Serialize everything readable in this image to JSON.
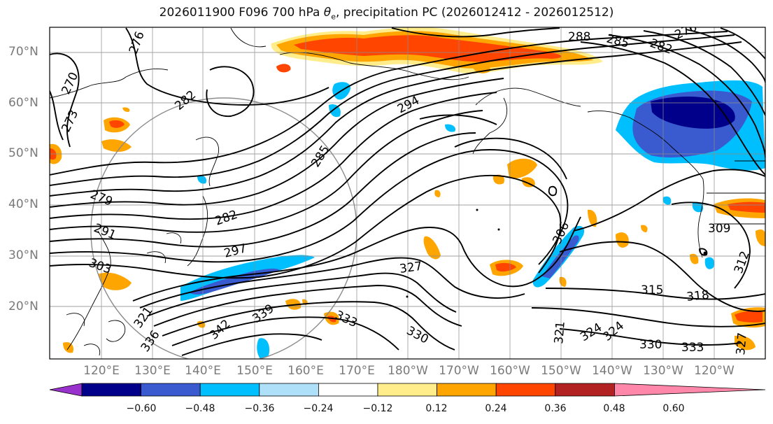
{
  "title_main": "2026011900 F096 700 hPa ",
  "title_symbol": "θ",
  "title_sub": "e",
  "title_rest": ", precipitation PC (2026012412 - 2026012512)",
  "lat_labels": [
    "70°N",
    "60°N",
    "50°N",
    "40°N",
    "30°N",
    "20°N"
  ],
  "lon_labels": [
    "120°E",
    "130°E",
    "140°E",
    "150°E",
    "160°E",
    "170°E",
    "180°W",
    "170°W",
    "160°W",
    "150°W",
    "140°W",
    "130°W",
    "120°W"
  ],
  "contour_labels": [
    "276",
    "270",
    "273",
    "282",
    "288",
    "285",
    "282",
    "276",
    "294",
    "285",
    "279",
    "282",
    "291",
    "297",
    "303",
    "327",
    "306",
    "309",
    "312",
    "315",
    "318",
    "333",
    "330",
    "339",
    "342",
    "321",
    "324",
    "324",
    "330",
    "333",
    "327",
    "321",
    "336"
  ],
  "colorbar": {
    "ticks": [
      "−0.60",
      "−0.48",
      "−0.36",
      "−0.24",
      "−0.12",
      "0.12",
      "0.24",
      "0.36",
      "0.48",
      "0.60"
    ],
    "colors": [
      "#9932cc",
      "#00008b",
      "#3a5bd0",
      "#00bfff",
      "#aee0fa",
      "#ffffff",
      "#ffec8b",
      "#ffa500",
      "#ff4500",
      "#b22222",
      "#ff88aa"
    ]
  },
  "palette": {
    "grid": "#8c8c8c",
    "contour": "#000000",
    "coast": "#000000"
  }
}
